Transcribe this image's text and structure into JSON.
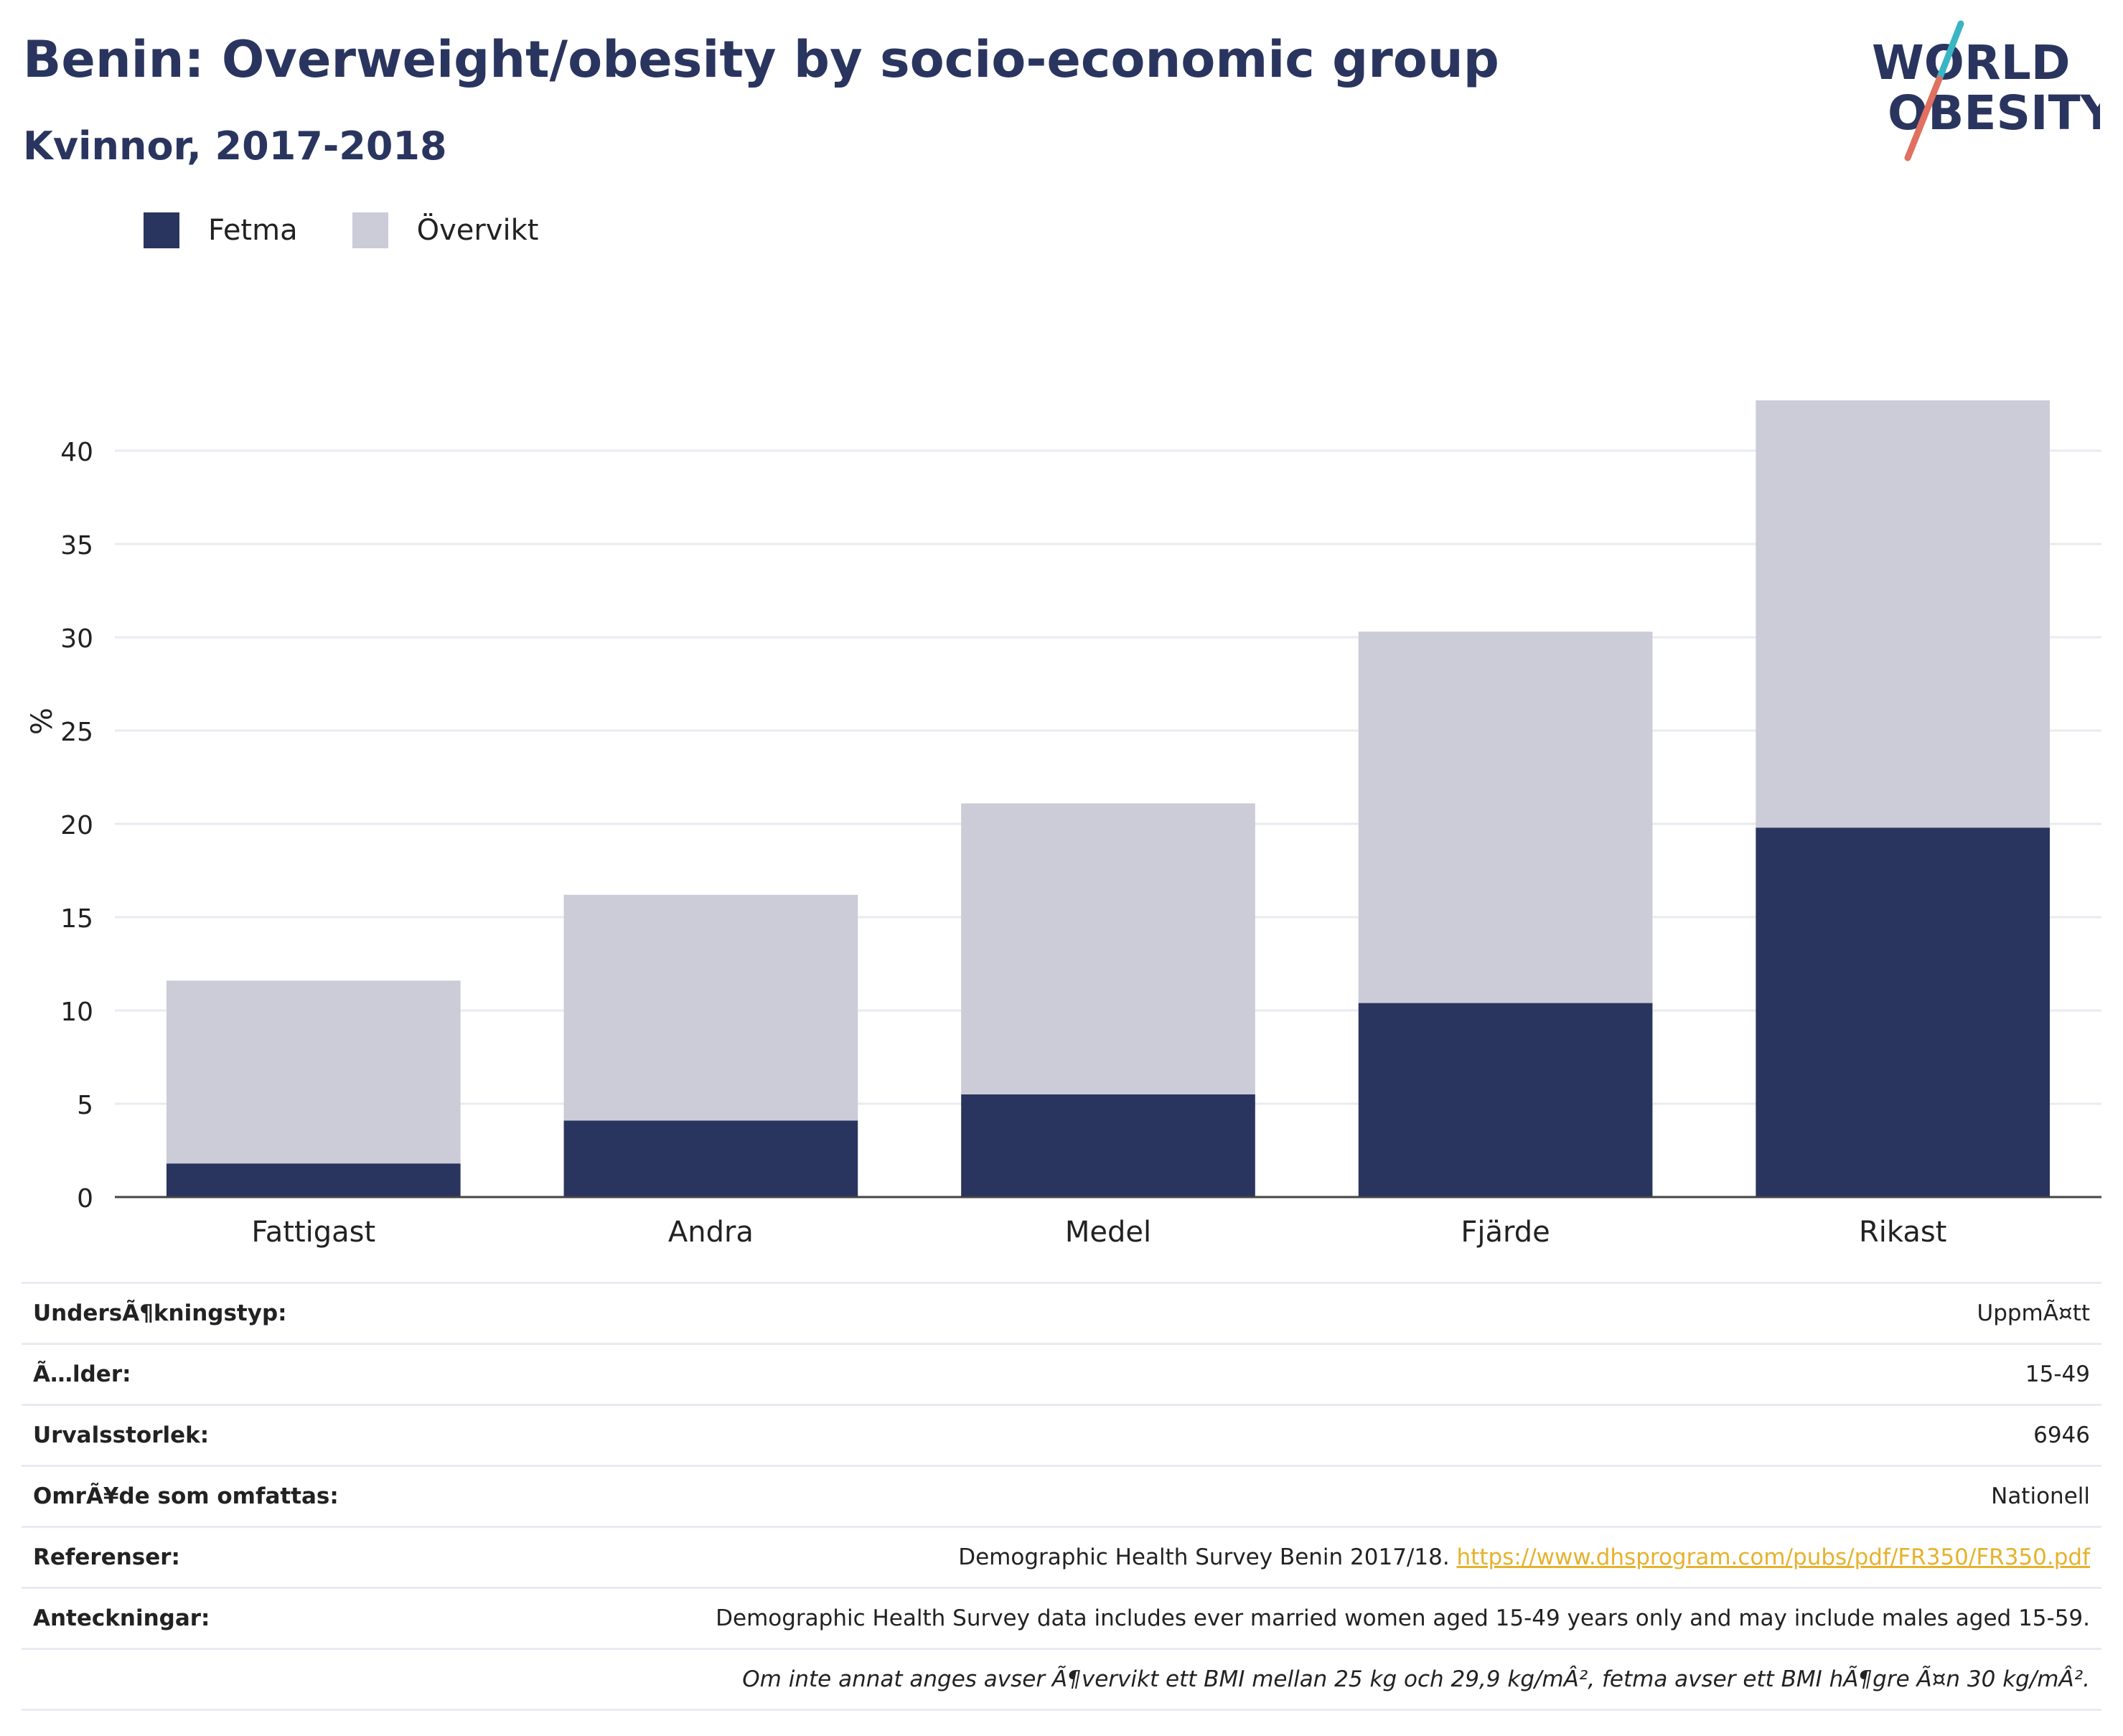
{
  "title": "Benin: Overweight/obesity by socio-economic group",
  "subtitle": "Kvinnor, 2017-2018",
  "logo": {
    "line1": "WORLD",
    "line2": "OBESITY",
    "colors": {
      "text": "#2a355f",
      "slash_top": "#3ab5c3",
      "slash_bottom": "#e07060"
    }
  },
  "legend": [
    {
      "label": "Fetma",
      "color": "#2a355f"
    },
    {
      "label": "Övervikt",
      "color": "#cbccd8"
    }
  ],
  "chart_data": {
    "type": "bar",
    "stacked": true,
    "categories": [
      "Fattigast",
      "Andra",
      "Medel",
      "Fjärde",
      "Rikast"
    ],
    "series": [
      {
        "name": "Fetma",
        "color": "#2a355f",
        "values": [
          1.8,
          4.1,
          5.5,
          10.4,
          19.8
        ]
      },
      {
        "name": "Övervikt",
        "color": "#cbccd8",
        "values": [
          9.8,
          12.1,
          15.6,
          19.9,
          22.9
        ]
      }
    ],
    "ylabel": "%",
    "ylim": [
      0,
      45
    ],
    "yticks": [
      0,
      5,
      10,
      15,
      20,
      25,
      30,
      35,
      40
    ],
    "grid": true,
    "legend_position": "top-left"
  },
  "info": {
    "survey_type": {
      "label": "UndersÃ¶kningstyp:",
      "value": "UppmÃ¤tt"
    },
    "age": {
      "label": "Ã…lder:",
      "value": "15-49"
    },
    "sample_size": {
      "label": "Urvalsstorlek:",
      "value": "6946"
    },
    "area": {
      "label": "OmrÃ¥de som omfattas:",
      "value": "Nationell"
    },
    "references": {
      "label": "Referenser:",
      "text": "Demographic Health Survey Benin 2017/18. ",
      "link": "https://www.dhsprogram.com/pubs/pdf/FR350/FR350.pdf"
    },
    "notes": {
      "label": "Anteckningar:",
      "value": "Demographic Health Survey data includes ever married women aged 15-49 years only and may include males aged 15-59."
    },
    "footnote": "Om inte annat anges avser Ã¶vervikt ett BMI mellan 25 kg och 29,9 kg/mÂ², fetma avser ett BMI hÃ¶gre Ã¤n 30 kg/mÂ²."
  }
}
